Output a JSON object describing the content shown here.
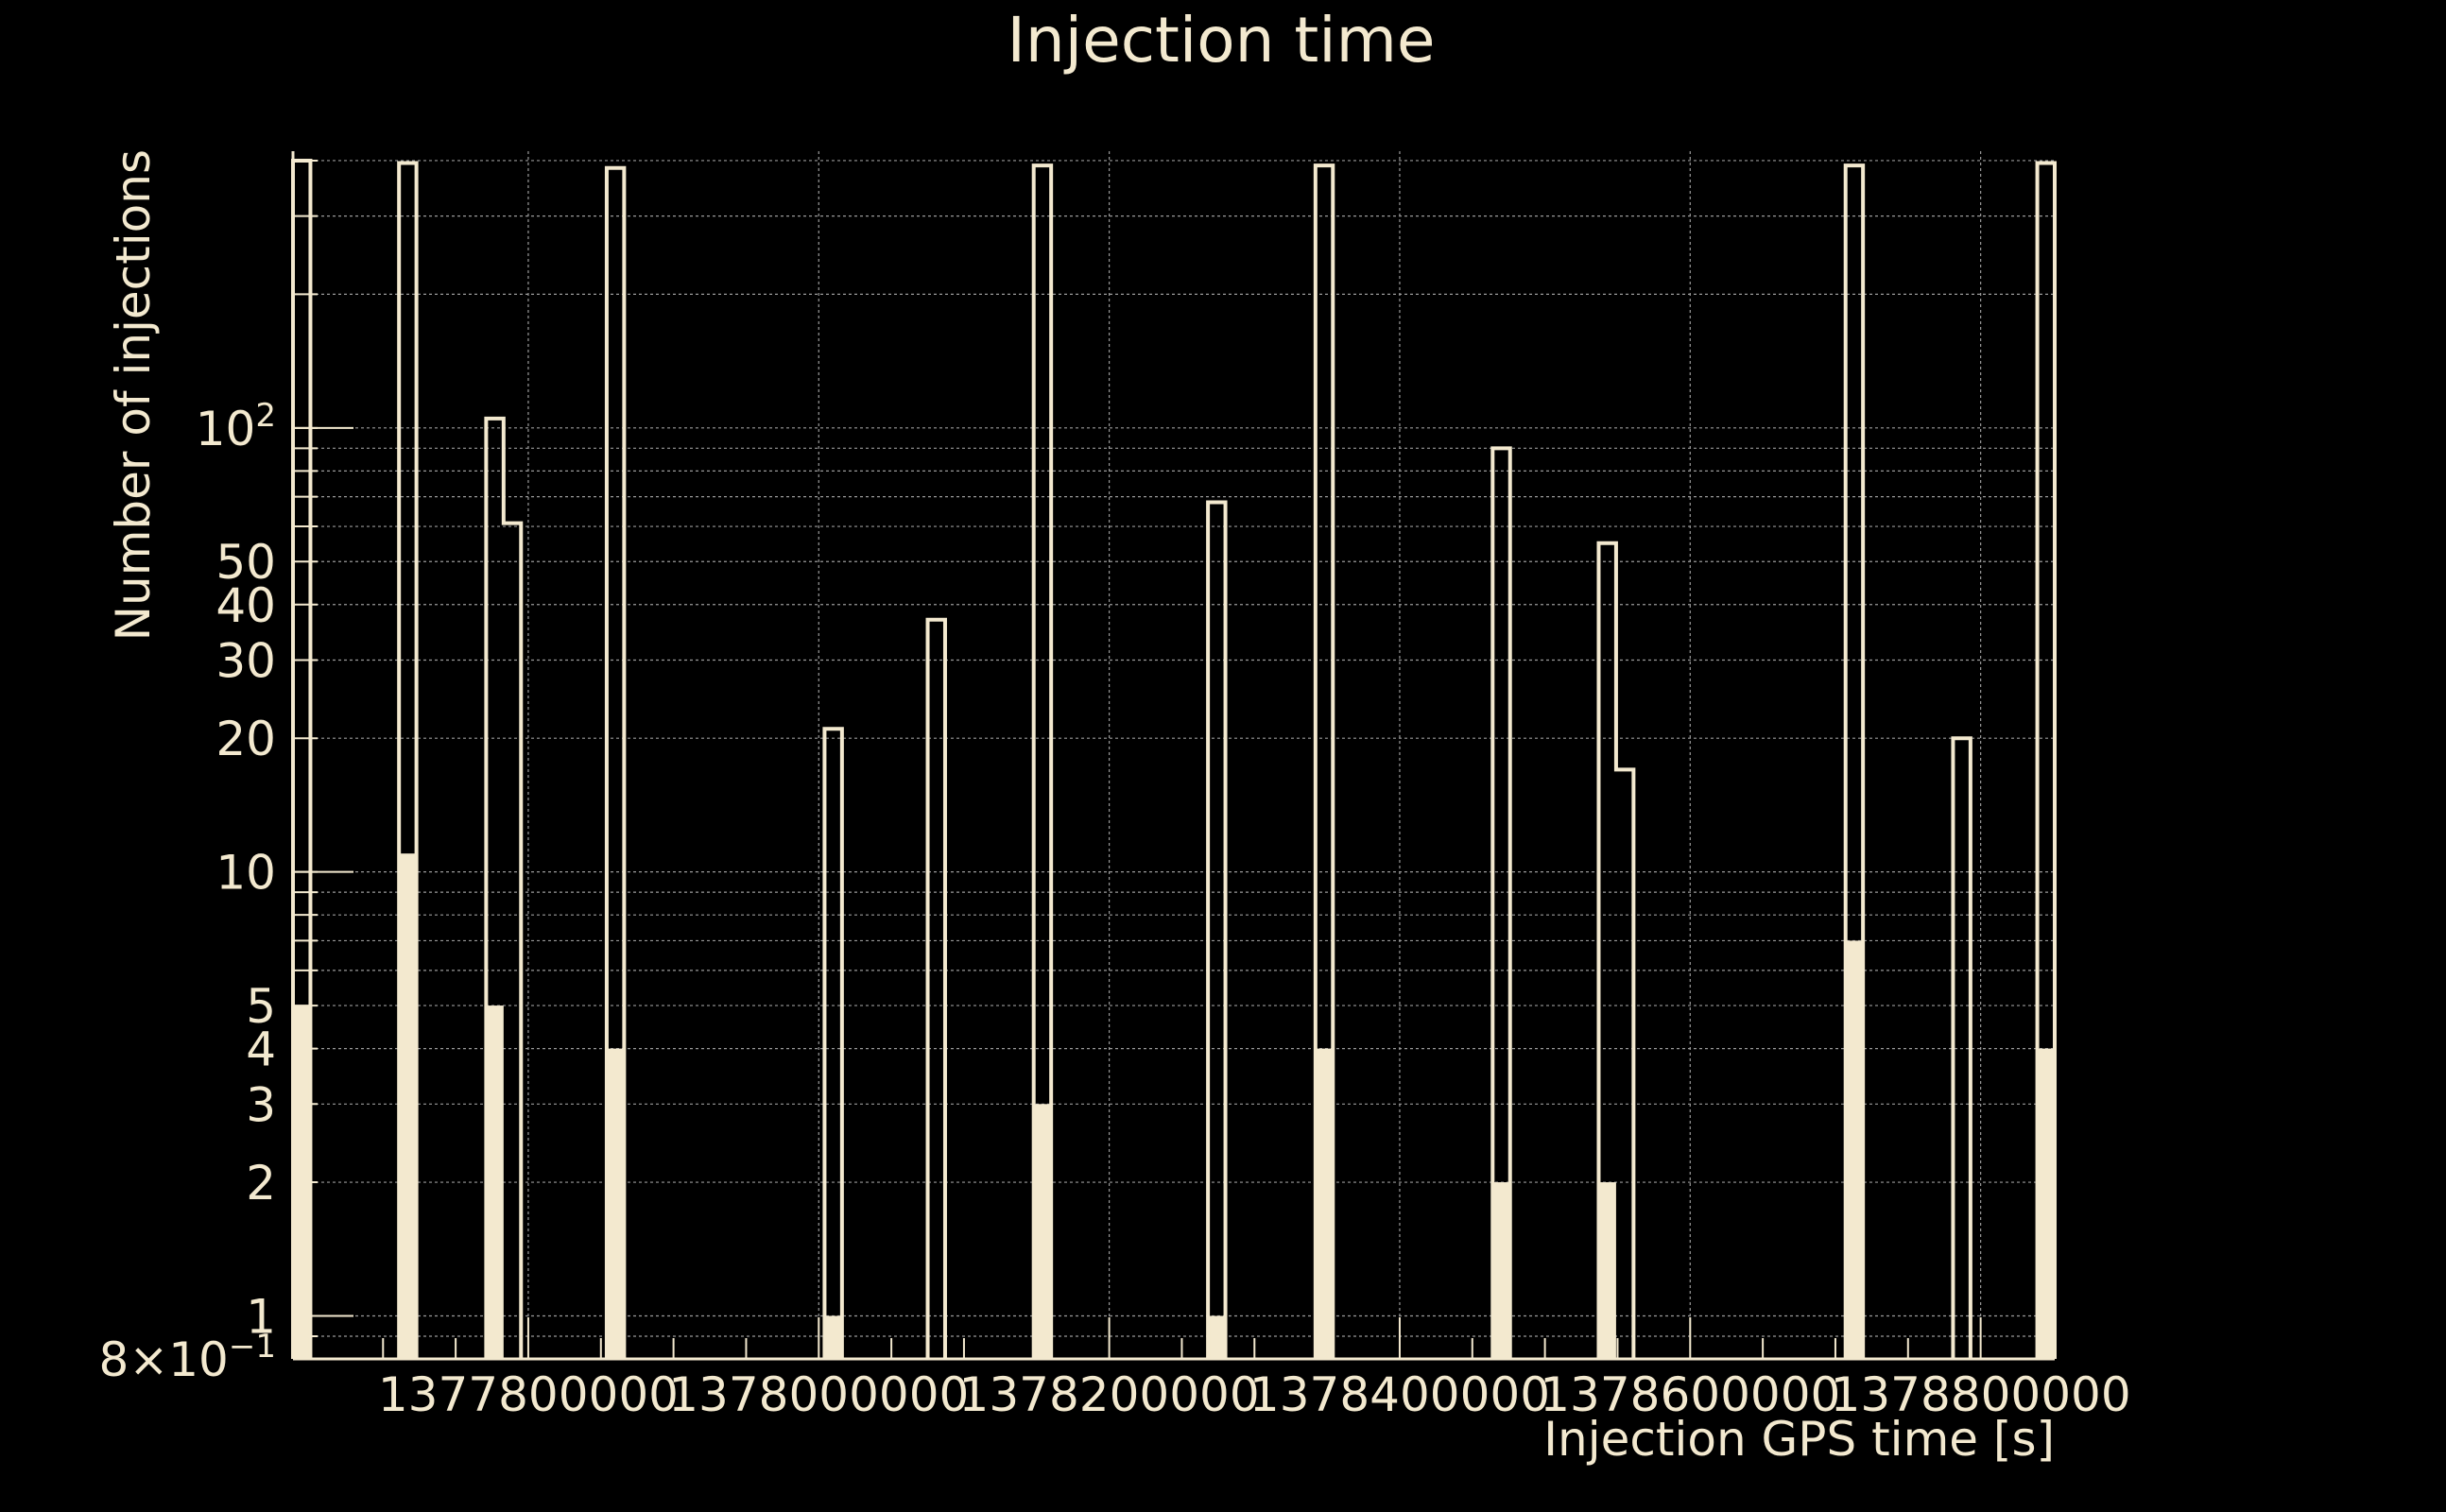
{
  "chart_data": {
    "type": "histogram",
    "title": "Injection time",
    "xlabel": "Injection GPS time [s]",
    "ylabel": "Number of injections",
    "y_scale": "log",
    "ylim": [
      0.8,
      420
    ],
    "xlim": [
      1377638000,
      1378851000
    ],
    "x_ticks": [
      1377800000,
      1378000000,
      1378200000,
      1378400000,
      1378600000,
      1378800000
    ],
    "x_tick_labels": [
      "1377800000",
      "1378000000",
      "1378200000",
      "1378400000",
      "1378600000",
      "1378800000"
    ],
    "y_ticks": [
      {
        "value": 0.8,
        "label": "8×10",
        "sup": "−1"
      },
      {
        "value": 1,
        "label": "1"
      },
      {
        "value": 2,
        "label": "2"
      },
      {
        "value": 3,
        "label": "3"
      },
      {
        "value": 4,
        "label": "4"
      },
      {
        "value": 5,
        "label": "5"
      },
      {
        "value": 10,
        "label": "10"
      },
      {
        "value": 20,
        "label": "20"
      },
      {
        "value": 30,
        "label": "30"
      },
      {
        "value": 40,
        "label": "40"
      },
      {
        "value": 50,
        "label": "50"
      },
      {
        "value": 100,
        "label": "10",
        "sup": "2"
      }
    ],
    "grid": true,
    "colors": {
      "background": "#000000",
      "foreground": "#f3e9cf"
    },
    "series": [
      {
        "style": "outline",
        "bins": [
          {
            "x0": 1377638000,
            "x1": 1377650000,
            "value": 400
          },
          {
            "x0": 1377711000,
            "x1": 1377723000,
            "value": 395
          },
          {
            "x0": 1377771000,
            "x1": 1377783000,
            "value": 105
          },
          {
            "x0": 1377783000,
            "x1": 1377795000,
            "value": 61
          },
          {
            "x0": 1377854000,
            "x1": 1377866000,
            "value": 385
          },
          {
            "x0": 1378004000,
            "x1": 1378016000,
            "value": 21
          },
          {
            "x0": 1378075000,
            "x1": 1378087000,
            "value": 37
          },
          {
            "x0": 1378148000,
            "x1": 1378160000,
            "value": 390
          },
          {
            "x0": 1378268000,
            "x1": 1378280000,
            "value": 68
          },
          {
            "x0": 1378342000,
            "x1": 1378354000,
            "value": 390
          },
          {
            "x0": 1378464000,
            "x1": 1378476000,
            "value": 90
          },
          {
            "x0": 1378537000,
            "x1": 1378549000,
            "value": 55
          },
          {
            "x0": 1378549000,
            "x1": 1378561000,
            "value": 17
          },
          {
            "x0": 1378707000,
            "x1": 1378719000,
            "value": 390
          },
          {
            "x0": 1378781000,
            "x1": 1378793000,
            "value": 20
          },
          {
            "x0": 1378839000,
            "x1": 1378851000,
            "value": 395
          }
        ]
      },
      {
        "style": "filled",
        "bins": [
          {
            "x0": 1377638000,
            "x1": 1377650000,
            "value": 5
          },
          {
            "x0": 1377711000,
            "x1": 1377723000,
            "value": 11
          },
          {
            "x0": 1377771000,
            "x1": 1377783000,
            "value": 5
          },
          {
            "x0": 1377854000,
            "x1": 1377866000,
            "value": 4
          },
          {
            "x0": 1378004000,
            "x1": 1378016000,
            "value": 1
          },
          {
            "x0": 1378148000,
            "x1": 1378160000,
            "value": 3
          },
          {
            "x0": 1378268000,
            "x1": 1378280000,
            "value": 1
          },
          {
            "x0": 1378342000,
            "x1": 1378354000,
            "value": 4
          },
          {
            "x0": 1378464000,
            "x1": 1378476000,
            "value": 2
          },
          {
            "x0": 1378537000,
            "x1": 1378549000,
            "value": 2
          },
          {
            "x0": 1378707000,
            "x1": 1378719000,
            "value": 7
          },
          {
            "x0": 1378839000,
            "x1": 1378851000,
            "value": 4
          }
        ]
      }
    ]
  }
}
